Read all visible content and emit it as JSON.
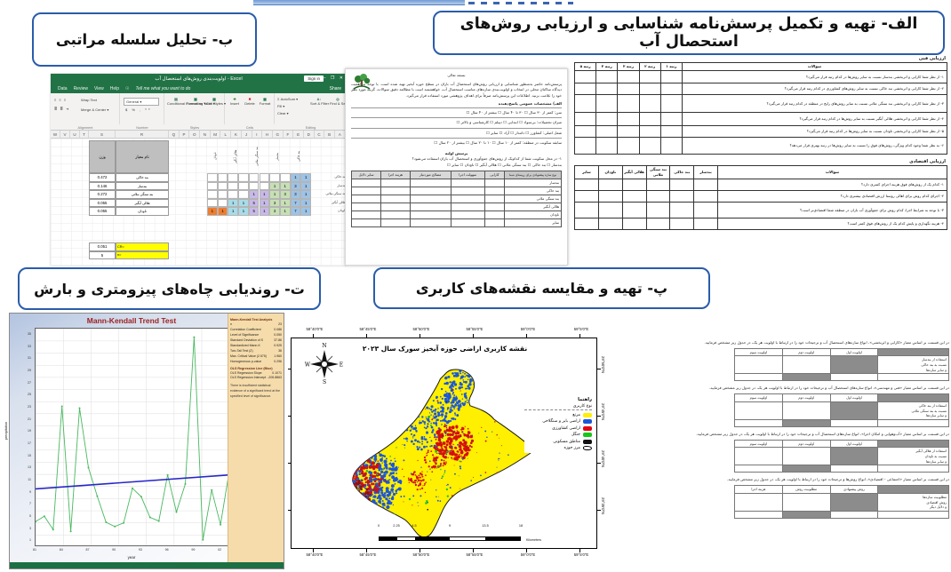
{
  "labels": {
    "alef": "الف- تهیه و تکمیل پرسش‌نامه شناسایی و ارزیابی روش‌های استحصال آب",
    "be": "ب- تحلیل سلسله مراتبی",
    "te": "ت- روندیابی چاه‌های پیزومتری و بارش",
    "pe": "پ- تهیه و مقایسه نقشه‌های کاربری"
  },
  "excel": {
    "window_title": "اولویت‌بندی روش‌های استحصال آب - Excel",
    "sign_in": "Sign in",
    "share": "Share",
    "window_buttons": "— ❐ ✕",
    "menu": [
      "Data",
      "Review",
      "View",
      "Help"
    ],
    "tell_me": "Tell me what you want to do",
    "ribbon": {
      "wrap_text": "Wrap Text",
      "merge": "Merge & Center ▾",
      "number_format": "General ▾",
      "cond": "Conditional Formatting ▾",
      "fmt_table": "Format as Table ▾",
      "cell_styles": "Cell Styles ▾",
      "insert": "Insert",
      "delete": "Delete",
      "format": "Format",
      "autosum": "Σ AutoSum ▾",
      "fill": "Fill ▾",
      "clear": "Clear ▾",
      "sort": "Sort & Filter",
      "find": "Find & Select",
      "groups": [
        "Alignment",
        "Number",
        "Styles",
        "Cells",
        "Editing"
      ]
    },
    "columns": [
      "W",
      "V",
      "U",
      "T",
      "S",
      "R",
      "Q",
      "P",
      "O",
      "N",
      "M",
      "L",
      "K",
      "J",
      "I",
      "H",
      "G",
      "F",
      "E",
      "D",
      "C",
      "B",
      "A"
    ],
    "header": {
      "weight": "وزن",
      "name": "نام معیار"
    },
    "methods": [
      "بند خاکی",
      "بندسار",
      "بند سنگی ملاتی",
      "هلالی آبگیر",
      "ناودان"
    ],
    "weights": [
      "0.472",
      "0.146",
      "0.272",
      "0.055",
      "0.055"
    ],
    "cr": {
      "cr_label": "CR=",
      "value": "0.051",
      "n_label": "n=",
      "n": "5"
    },
    "matrix": [
      [
        "",
        "",
        "",
        "",
        "",
        "",
        "",
        "",
        "1|b",
        "1|b"
      ],
      [
        "",
        "",
        "",
        "",
        "",
        "",
        "1|g",
        "1|g",
        "3|b",
        "1|b"
      ],
      [
        "",
        "",
        "",
        "",
        "1|p",
        "1|p",
        "1|g",
        "3|g",
        "3|b",
        "1|b"
      ],
      [
        "",
        "",
        "1|c",
        "1|c",
        "5|p",
        "1|p",
        "3|g",
        "1|g",
        "7|b",
        "1|b"
      ],
      [
        "1|o",
        "1|o",
        "1|c",
        "1|c",
        "5|p",
        "1|p",
        "3|g",
        "1|g",
        "7|b",
        "1|b"
      ]
    ]
  },
  "q1": {
    "bism": "بسمه تعالی",
    "intro": "پرسش‌نامه حاضر به‌منظور شناسایی و ارزیابی روش‌های استحصال آب باران در سطح حوزه آبخیز تهیه شده است. با توجه به اهمیت دیدگاه ساکنان محلی در انتخاب و اولویت‌بندی سازه‌های مناسب استحصال آب، خواهشمند است با مطالعه دقیق سوالات، گزینه مورد نظر خود را علامت بزنید. اطلاعات این پرسش‌نامه صرفاً برای اهداف پژوهشی مورد استفاده قرار می‌گیرد.",
    "section_a": "الف) مشخصات عمومی پاسخ‌دهنده",
    "form": [
      "سن:   کمتر از ۳۰ سال ☐    ۳۰ تا ۴۰ سال ☐    بیشتر از ۴۰ سال ☐",
      "میزان تحصیلات:   بی‌سواد ☐    ابتدایی ☐    دیپلم ☐    کارشناسی و بالاتر ☐",
      "شغل اصلی:   کشاورز ☐    دامدار ☐    آزاد ☐    سایر ☐",
      "سابقه سکونت در منطقه:   کمتر از ۱۰ سال ☐    ۱۰ تا ۲۰ سال ☐    بیشتر از ۲۰ سال ☐"
    ],
    "section_b": "پرسش اولیه",
    "qa": "۱- در محل سکونت شما از کدام‌یک از روش‌های جمع‌آوری و استحصال آب باران استفاده می‌شود؟",
    "qa_opts": "بندسار ☐    بند خاکی ☐    بند سنگی ملاتی ☐    هلالی آبگیر ☐    ناودان ☐    سایر ☐",
    "table_head": "نوع سازه پیشنهادی برای روستای شما",
    "table_cols": [
      "کارایی",
      "سهولت اجرا",
      "مصالح موردنیاز",
      "هزینه اجرا",
      "سایر دلایل"
    ],
    "table_rows": [
      "بندسار",
      "بند خاکی",
      "بند سنگی ملاتی",
      "هلالی آبگیر",
      "ناودان",
      "سایر"
    ]
  },
  "q2": {
    "t1_title": "ارزیابی فنی",
    "t1_qcol": "سوالات",
    "t1_cols": [
      "رتبه ۱",
      "رتبه ۲",
      "رتبه ۳",
      "رتبه ۴",
      "رتبه ۵"
    ],
    "t1_rows": [
      "۱- از نظر شما کارایی و اثربخشی بندسار نسبت به سایر روش‌ها در کدام رتبه قرار می‌گیرد؟",
      "۲- از نظر شما کارایی و اثربخشی بند خاکی نسبت به سایر روش‌های کشاورزی در کدام رتبه قرار می‌گیرد؟",
      "۳- از نظر شما کارایی و اثربخشی بند سنگی ملاتی نسبت به سایر روش‌های رایج در منطقه در کدام رتبه قرار می‌گیرد؟",
      "۴- از نظر شما کارایی و اثربخشی هلالی آبگیر نسبت به سایر روش‌ها در کدام رتبه قرار می‌گیرد؟",
      "۵- از نظر شما کارایی و اثربخشی ناودان نسبت به سایر روش‌ها در کدام رتبه قرار می‌گیرد؟",
      "۶- به نظر شما وجود کدام ویژگی، روش‌های فوق را نسبت به سایر روش‌ها در رتبه بهتری قرار می‌دهد؟"
    ],
    "t2_title": "ارزیابی اقتصادی",
    "t2_qcol": "سوالات",
    "t2_cols": [
      "بندسار",
      "بند خاکی",
      "بند سنگی ملاتی",
      "هلالی آبگیر",
      "ناودان",
      "سایر"
    ],
    "t2_rows": [
      "۱- کدام یک از روش‌های فوق هزینه اجرای کمتری دارد؟",
      "۲- اجرای کدام روش برای اهالی روستا ارزش اقتصادی بیشتری دارد؟",
      "۳- با توجه به شرایط اجرا، کدام روش برای جمع‌آوری آب باران در منطقه شما اقتصادی‌تر است؟",
      "۴- هزینه نگهداری و پایش کدام یک از روش‌های فوق کمتر است؟"
    ]
  },
  "chart_data": {
    "type": "line",
    "title": "Mann-Kendall Trend Test",
    "xlabel": "year",
    "ylabel": "precipitation",
    "x_ticklabels": [
      "81",
      "84",
      "87",
      "90",
      "93",
      "96",
      "99",
      "02"
    ],
    "values": [
      4.2,
      5.1,
      2.9,
      23.2,
      2.6,
      22.9,
      13.1,
      8.4,
      4.1,
      3.4,
      4.0,
      9.7,
      8.3,
      4.9,
      4.3,
      11.9,
      5.8,
      10.4,
      34.6,
      1.2,
      9.4,
      3.7,
      12.6
    ],
    "trend": {
      "y0": 9.6,
      "y1": 11.9
    },
    "ylim": [
      0,
      36
    ],
    "ytick_start": 1,
    "ytick_step": 2,
    "grid": true,
    "series_color": "#49b85f",
    "trend_color": "#2727c9",
    "panel": {
      "title1": "Mann-Kendall Test Analysis",
      "stats": [
        [
          "n",
          "23"
        ],
        [
          "Correlation Coefficient",
          "0.086"
        ],
        [
          "Level of Significance",
          "0.050"
        ],
        [
          "Standard Deviation of S",
          "37.86"
        ],
        [
          "Standardized Mann-K",
          "0.925"
        ],
        [
          "Two-Tail Test (Z)",
          "36"
        ],
        [
          "Max. Critical Value (2.575)",
          "1.960"
        ],
        [
          "Homogeneous p-value",
          "0.296"
        ]
      ],
      "title2": "OLS Regression Line (Blue)",
      "ols": [
        [
          "OLS Regression Slope",
          "0.1071"
        ],
        [
          "OLS Regression Intercept",
          "-205.8863"
        ]
      ],
      "note": "There is insufficient statistical evidence of a significant trend at the specified level of significance."
    }
  },
  "map": {
    "title": "نقشه کاربری اراضی حوزه آبخیز سورک سال ۲۰۲۳",
    "compass": {
      "n": "N",
      "s": "S",
      "e": "E",
      "w": "W"
    },
    "lon_ticks": [
      "58°40'0\"E",
      "58°45'0\"E",
      "58°50'0\"E",
      "58°55'0\"E",
      "59°0'0\"E",
      "59°5'0\"E"
    ],
    "lat_ticks": [
      "29°50'0\"N",
      "29°45'0\"N",
      "29°40'0\"N",
      "29°35'0\"N"
    ],
    "legend_title": "راهنما",
    "legend_sub": "نوع کاربری",
    "legend": [
      {
        "label": "مرتع",
        "color": "#ffef00"
      },
      {
        "label": "اراضی بایر و سنگلاخی",
        "color": "#1b57d9"
      },
      {
        "label": "اراضی کشاورزی",
        "color": "#e30613"
      },
      {
        "label": "جنگل",
        "color": "#19c719"
      },
      {
        "label": "مناطق مسکونی",
        "color": "#111111"
      },
      {
        "label": "مرز حوزه",
        "color": "none"
      }
    ],
    "scale_labels": [
      "0",
      "2.25",
      "4.5",
      "9",
      "13.5",
      "18"
    ],
    "scale_unit": "Kilometers"
  },
  "rt": {
    "sections": [
      {
        "intro": "در این قسمت بر اساس معیار «کارایی و اثربخشی»، انواع سازه‌های استحصال آب و ترجیحات خود را در ارتباط با اولویت هر یک، در جدول زیر مشخص فرمایید.",
        "cols": [
          "اولویت اول",
          "اولویت دوم",
          "اولویت سوم"
        ],
        "rows": [
          "استفاده از بندسار",
          "نسبت به بند خاکی",
          "و سایر سازه‌ها"
        ]
      },
      {
        "intro": "در این قسمت بر اساس معیار «فنی و مهندسی»، انواع سازه‌های استحصال آب و ترجیحات خود را در ارتباط با اولویت هر یک، در جدول زیر مشخص فرمایید.",
        "cols": [
          "اولویت اول",
          "اولویت دوم",
          "اولویت سوم"
        ],
        "rows": [
          "استفاده از بند خاکی",
          "نسبت به بند سنگی ملاتی",
          "و سایر سازه‌ها"
        ]
      },
      {
        "intro": "در این قسمت بر اساس معیار «آب‌وهوایی و امکان اجرا»، انواع سازه‌های استحصال آب و ترجیحات خود را در ارتباط با اولویت هر یک، در جدول زیر مشخص فرمایید.",
        "cols": [
          "اولویت اول",
          "اولویت دوم",
          "اولویت سوم"
        ],
        "rows": [
          "استفاده از هلالی آبگیر",
          "نسبت به ناودان",
          "و سایر سازه‌ها"
        ]
      },
      {
        "intro": "در این قسمت بر اساس معیار «اجتماعی - اقتصادی»، انواع روش‌ها و ترجیحات خود را در ارتباط با اولویت هر یک، در جدول زیر مشخص فرمایید.",
        "cols": [
          "روش پیشنهادی",
          "مطلوبیت روش",
          "هزینه اجرا"
        ],
        "rows": [
          "مطلوبیت سازه‌ها",
          "روش اقتصادی",
          "و دلایل دیگر"
        ]
      }
    ]
  }
}
